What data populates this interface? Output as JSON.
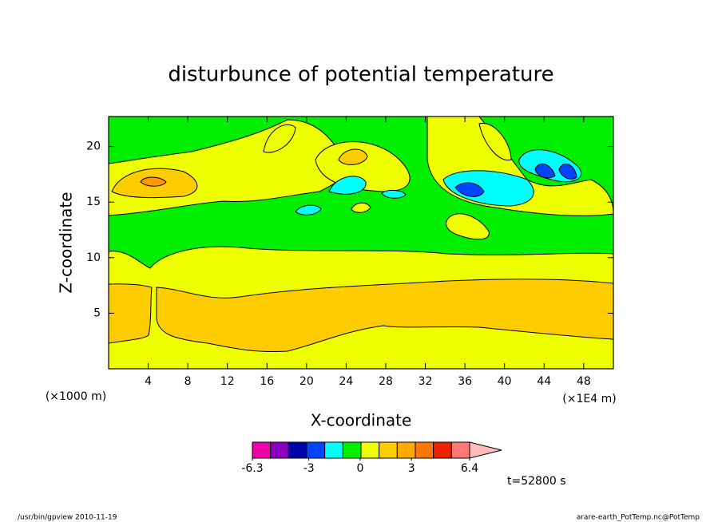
{
  "chart_data": {
    "type": "contour",
    "title": "disturbunce of potential temperature",
    "x_label": "X-coordinate",
    "y_label": "Z-coordinate",
    "x_unit_left": "(×1000 m)",
    "x_unit_right": "(×1E4 m)",
    "xlim": [
      0,
      51
    ],
    "xticks": [
      4,
      8,
      12,
      16,
      20,
      24,
      28,
      32,
      36,
      40,
      44,
      48
    ],
    "ylim": [
      0,
      22.7
    ],
    "yticks": [
      5,
      10,
      15,
      20
    ],
    "colorbar": {
      "clim": [
        -6.3,
        6.4
      ],
      "ticks": [
        -6.3,
        -3,
        0,
        3,
        6.4
      ],
      "colors": [
        "#ee00aa",
        "#8800bb",
        "#0000aa",
        "#0044ff",
        "#00ffff",
        "#00ee00",
        "#eeff00",
        "#ffcc00",
        "#ffaa00",
        "#ff7700",
        "#ee2200",
        "#ff7777",
        "#ffbbbb"
      ]
    },
    "annotation": "t=52800 s",
    "footer_left": "/usr/bin/gpview   2010-11-19",
    "footer_right": "arare-earth_PotTemp.nc@PotTemp"
  }
}
